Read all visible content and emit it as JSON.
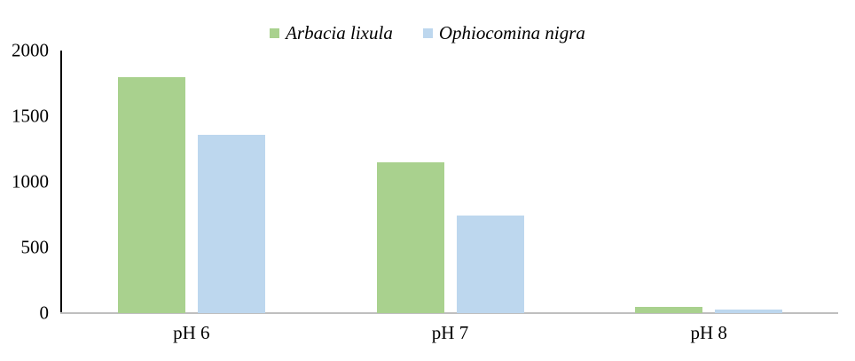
{
  "chart_data": {
    "type": "bar",
    "title": "",
    "categories": [
      "pH 6",
      "pH 7",
      "pH 8"
    ],
    "series": [
      {
        "name": "Arbacia lixula",
        "color": "#a9d18e",
        "values": [
          1800,
          1150,
          50
        ]
      },
      {
        "name": "Ophiocomina nigra",
        "color": "#bdd7ee",
        "values": [
          1360,
          745,
          25
        ]
      }
    ],
    "xlabel": "",
    "ylabel": "",
    "ylim": [
      0,
      2000
    ],
    "yticks": [
      0,
      500,
      1000,
      1500,
      2000
    ],
    "grid": false,
    "legend_position": "top",
    "legend_style": "italic"
  },
  "axis_colors": {
    "y_axis_line": "#000000",
    "x_axis_line": "#bfbfbf",
    "text": "#000000"
  }
}
